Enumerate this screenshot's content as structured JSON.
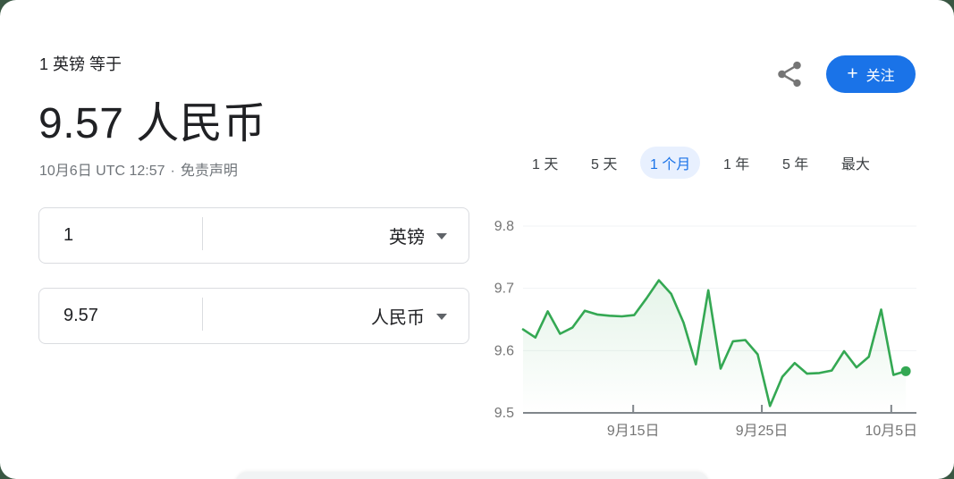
{
  "page": {
    "backdrop_color": "#3a5743",
    "card_color": "#ffffff"
  },
  "header": {
    "subtitle": "1 英镑 等于",
    "rate_headline": "9.57 人民币",
    "timestamp": "10月6日 UTC 12:57",
    "dot_separator": "·",
    "disclaimer_label": "免责声明"
  },
  "actions": {
    "share_icon": "share-icon",
    "share_color": "#757575",
    "follow_plus": "+",
    "follow_label": "关注",
    "follow_bg": "#1a73e8"
  },
  "converter": {
    "from_row": {
      "amount": "1",
      "currency": "英镑",
      "caret_icon": "chevron-down-icon"
    },
    "to_row": {
      "amount": "9.57",
      "currency": "人民币",
      "caret_icon": "chevron-down-icon"
    }
  },
  "range_tabs": {
    "selected_color": "#1a73e8",
    "selected_bg": "#e8f0fe",
    "items": [
      {
        "label": "1 天",
        "selected": false
      },
      {
        "label": "5 天",
        "selected": false
      },
      {
        "label": "1 个月",
        "selected": true
      },
      {
        "label": "1 年",
        "selected": false
      },
      {
        "label": "5 年",
        "selected": false
      },
      {
        "label": "最大",
        "selected": false
      }
    ]
  },
  "chart_data": {
    "type": "line",
    "line_color": "#34a853",
    "area_fill_color": "#34a853",
    "grid": true,
    "current_value": 9.57,
    "end_dot": true,
    "y_axis": {
      "ticks": [
        9.8,
        9.7,
        9.6,
        9.5
      ],
      "range": [
        9.5,
        9.8
      ],
      "label_color": "#757575"
    },
    "x_axis": {
      "ticks": [
        {
          "label": "9月15日",
          "position": 0.28
        },
        {
          "label": "9月25日",
          "position": 0.607
        },
        {
          "label": "10月5日",
          "position": 0.936
        }
      ],
      "label_color": "#757575"
    },
    "span_fraction": 0.973,
    "values": [
      9.634,
      9.621,
      9.663,
      9.627,
      9.637,
      9.664,
      9.658,
      9.656,
      9.655,
      9.657,
      9.684,
      9.713,
      9.691,
      9.645,
      9.578,
      9.697,
      9.571,
      9.615,
      9.617,
      9.594,
      9.511,
      9.558,
      9.58,
      9.563,
      9.564,
      9.568,
      9.599,
      9.573,
      9.59,
      9.666,
      9.561,
      9.567
    ]
  }
}
